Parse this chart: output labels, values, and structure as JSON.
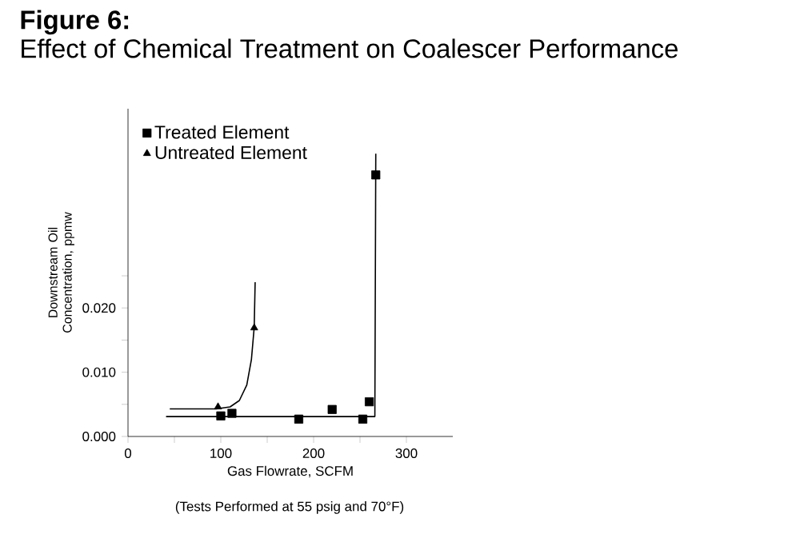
{
  "chart_data": {
    "type": "scatter",
    "title": "Figure 6:",
    "subtitle": "Effect of Chemical Treatment on Coalescer Performance",
    "xlabel": "Gas Flowrate, SCFM",
    "ylabel": "Downstream Oil Concentration, ppmw",
    "annotations": [
      "(Tests Performed at 55 psig and 70°F)"
    ],
    "xlim": [
      0,
      350
    ],
    "ylim": [
      0,
      0.051
    ],
    "xticks": [
      0,
      {
        "value": 50,
        "label": null
      },
      100,
      {
        "value": 150,
        "label": null
      },
      200,
      {
        "value": 250,
        "label": null
      },
      300
    ],
    "yticks": [
      {
        "value": 0,
        "label": "0.000"
      },
      {
        "value": 0.005,
        "label": null
      },
      {
        "value": 0.01,
        "label": "0.010"
      },
      {
        "value": 0.015,
        "label": null
      },
      {
        "value": 0.02,
        "label": "0.020"
      },
      {
        "value": 0.025,
        "label": null
      }
    ],
    "legend": "top left",
    "grid": false,
    "series": [
      {
        "name": "Treated Element",
        "marker": "square",
        "color": "#000000",
        "x": [
          100,
          112,
          184,
          220,
          253,
          260,
          267
        ],
        "values": [
          0.0032,
          0.0036,
          0.0027,
          0.0042,
          0.0027,
          0.0054,
          0.0407
        ]
      },
      {
        "name": "Untreated Element",
        "marker": "triangle",
        "color": "#000000",
        "x": [
          97,
          136
        ],
        "values": [
          0.0046,
          0.0169
        ]
      },
      {
        "type": "line",
        "marker": "none",
        "color": "#000000",
        "x": [
          41,
          266,
          267
        ],
        "values": [
          0.0031,
          0.0031,
          0.044
        ]
      },
      {
        "type": "line",
        "marker": "none",
        "color": "#000000",
        "x": [
          45,
          95,
          110,
          120,
          128,
          133,
          136,
          137
        ],
        "values": [
          0.0043,
          0.0043,
          0.0046,
          0.0056,
          0.008,
          0.012,
          0.017,
          0.024
        ]
      }
    ]
  }
}
